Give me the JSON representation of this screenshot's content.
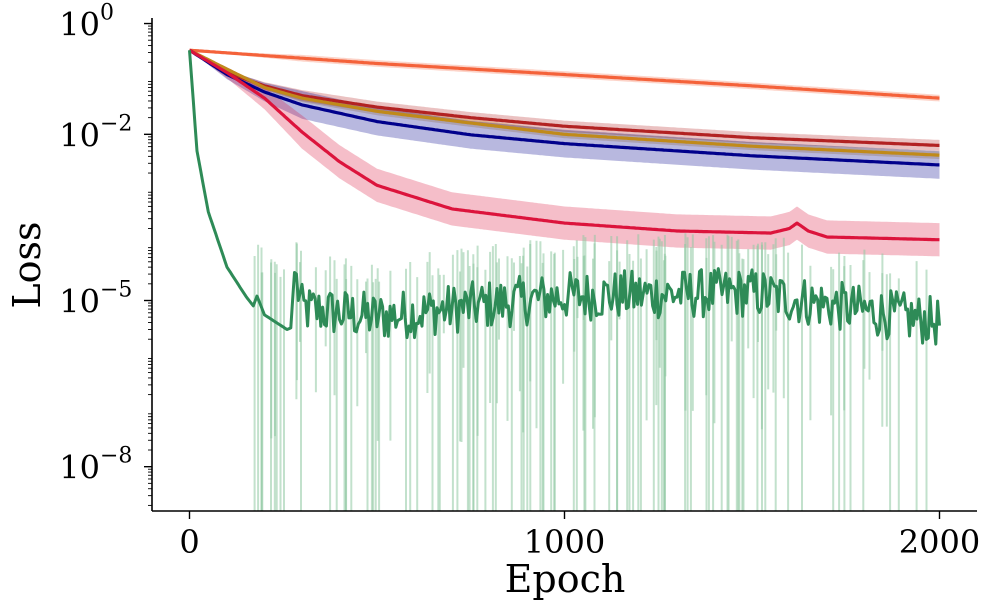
{
  "chart_data": {
    "type": "line",
    "title": "",
    "xlabel": "Epoch",
    "ylabel": "Loss",
    "xlim": [
      -100,
      2100
    ],
    "ylim_log10": [
      -8.8,
      0.1
    ],
    "y_scale": "log",
    "x_ticks": [
      {
        "value": 0,
        "label": "0"
      },
      {
        "value": 1000,
        "label": "1000"
      },
      {
        "value": 2000,
        "label": "2000"
      }
    ],
    "y_ticks": [
      {
        "value": 1,
        "base": "10",
        "exp": "0"
      },
      {
        "value": 0.01,
        "base": "10",
        "exp": "−2"
      },
      {
        "value": 1e-05,
        "base": "10",
        "exp": "−5"
      },
      {
        "value": 1e-08,
        "base": "10",
        "exp": "−8"
      }
    ],
    "series": [
      {
        "name": "orange-red",
        "color": "#f4623a",
        "x": [
          0,
          250,
          500,
          1000,
          1500,
          2000
        ],
        "y": [
          0.33,
          0.25,
          0.19,
          0.12,
          0.075,
          0.045
        ],
        "band": 0.06
      },
      {
        "name": "firebrick",
        "color": "#b22222",
        "x": [
          0,
          100,
          200,
          300,
          500,
          750,
          1000,
          1500,
          2000
        ],
        "y": [
          0.33,
          0.13,
          0.075,
          0.05,
          0.031,
          0.02,
          0.014,
          0.0087,
          0.0063
        ],
        "band": 0.1
      },
      {
        "name": "goldenrod",
        "color": "#c08a1a",
        "x": [
          0,
          100,
          200,
          300,
          500,
          750,
          1000,
          1500,
          2000
        ],
        "y": [
          0.33,
          0.15,
          0.07,
          0.045,
          0.026,
          0.016,
          0.01,
          0.0061,
          0.0042
        ],
        "band": 0.07
      },
      {
        "name": "navy",
        "color": "#00008b",
        "x": [
          0,
          100,
          200,
          300,
          500,
          750,
          1000,
          1500,
          2000
        ],
        "y": [
          0.33,
          0.12,
          0.058,
          0.034,
          0.017,
          0.0098,
          0.0068,
          0.0041,
          0.0028
        ],
        "band": 0.25
      },
      {
        "name": "crimson",
        "color": "#dc143c",
        "x": [
          0,
          100,
          200,
          300,
          400,
          500,
          700,
          1000,
          1300,
          1550,
          1600,
          1620,
          1650,
          1700,
          1800,
          2000
        ],
        "y": [
          0.33,
          0.13,
          0.045,
          0.011,
          0.0032,
          0.0012,
          0.00045,
          0.00025,
          0.00018,
          0.000165,
          0.0002,
          0.00025,
          0.00018,
          0.00014,
          0.000135,
          0.000125
        ],
        "band": 0.3
      },
      {
        "name": "seagreen",
        "color": "#2e8b57",
        "x": [
          0,
          20,
          50,
          100,
          150,
          170,
          180,
          200,
          260,
          270,
          280,
          300,
          400,
          500,
          1000,
          1500,
          2000
        ],
        "y": [
          0.33,
          0.005,
          0.0004,
          4e-05,
          1.2e-05,
          8e-06,
          1.2e-05,
          5.5e-06,
          3e-06,
          3.2e-06,
          3.2e-05,
          7e-06,
          6e-06,
          5e-06,
          1.2e-05,
          1.4e-05,
          4e-06
        ],
        "band": 0.0
      }
    ]
  }
}
